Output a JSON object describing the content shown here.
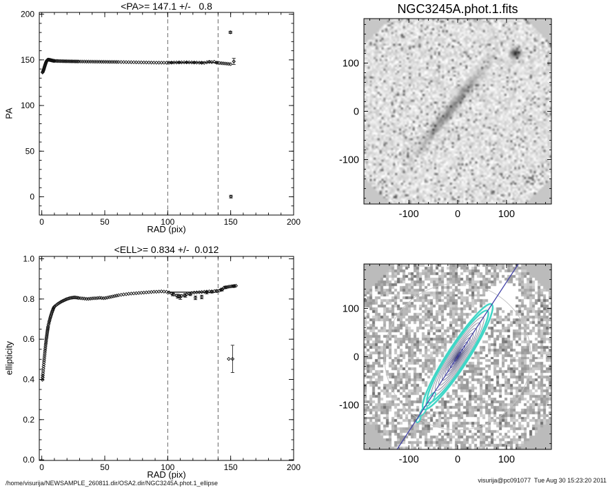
{
  "footer": {
    "left_path": "/home/visurija/NEWSAMPLE_260811.dir/OSA2.dir/NGC3245A.phot.1_ellipse",
    "right_stamp": "visurija@pc091077  Tue Aug 30 15:23:20 2011"
  },
  "chart_data": [
    {
      "id": "pa_profile",
      "type": "scatter",
      "title": "<PA>= 147.1 +/-   0.8",
      "xlabel": "RAD (pix)",
      "ylabel": "PA",
      "xlim": [
        -2,
        200
      ],
      "ylim": [
        -20,
        202
      ],
      "xticks": [
        0,
        50,
        100,
        150,
        200
      ],
      "xtick_labels": [
        "0",
        "50",
        "100",
        "150",
        "200"
      ],
      "yticks": [
        0,
        50,
        100,
        150,
        200
      ],
      "ytick_labels": [
        "0",
        "50",
        "100",
        "150",
        "200"
      ],
      "xminor": 10,
      "yminor": 10,
      "guide_vlines": [
        100,
        140
      ],
      "mean_line": {
        "y": 147.1,
        "x0": 100,
        "x1": 140
      },
      "points": [
        [
          0.6,
          136.2
        ],
        [
          0.8,
          136.8
        ],
        [
          1,
          137.5
        ],
        [
          1.2,
          138.2
        ],
        [
          1.4,
          139
        ],
        [
          1.6,
          139.8
        ],
        [
          1.8,
          140.7
        ],
        [
          2,
          141.6
        ],
        [
          2.2,
          142.5
        ],
        [
          2.4,
          143.4
        ],
        [
          2.6,
          144.3
        ],
        [
          2.8,
          145.1
        ],
        [
          3,
          145.9
        ],
        [
          3.2,
          146.7
        ],
        [
          3.4,
          147.4
        ],
        [
          3.6,
          148
        ],
        [
          3.8,
          148.6
        ],
        [
          4,
          149.1
        ],
        [
          4.2,
          149.5
        ],
        [
          4.4,
          149.8
        ],
        [
          4.6,
          150
        ],
        [
          4.8,
          150.1
        ],
        [
          5,
          150.2
        ],
        [
          5.3,
          150.2
        ],
        [
          5.6,
          150.15
        ],
        [
          5.9,
          150.1
        ],
        [
          6.2,
          150
        ],
        [
          6.5,
          149.9
        ],
        [
          6.8,
          149.8
        ],
        [
          7.1,
          149.7
        ],
        [
          7.4,
          149.6
        ],
        [
          7.7,
          149.5
        ],
        [
          8,
          149.4
        ],
        [
          8.3,
          149.3
        ],
        [
          8.6,
          149.2
        ],
        [
          8.9,
          149.1
        ],
        [
          9.2,
          149
        ],
        [
          9.5,
          148.95
        ],
        [
          9.8,
          148.9
        ],
        [
          10.5,
          148.85
        ],
        [
          11.5,
          148.8
        ],
        [
          12.5,
          148.75
        ],
        [
          13.5,
          148.7
        ],
        [
          14.5,
          148.65
        ],
        [
          15.5,
          148.6
        ],
        [
          16.5,
          148.58
        ],
        [
          17.5,
          148.55
        ],
        [
          18.5,
          148.5
        ],
        [
          19.5,
          148.48
        ],
        [
          20.5,
          148.45
        ],
        [
          21.5,
          148.42
        ],
        [
          22.5,
          148.4
        ],
        [
          23.5,
          148.38
        ],
        [
          24.5,
          148.35
        ],
        [
          25.5,
          148.32
        ],
        [
          26.5,
          148.3
        ],
        [
          27.5,
          148.28
        ],
        [
          28.5,
          148.25
        ],
        [
          29.5,
          148.22
        ],
        [
          31,
          148.2
        ],
        [
          32.5,
          148.18
        ],
        [
          34,
          148.15
        ],
        [
          35.5,
          148.12
        ],
        [
          37,
          148.1
        ],
        [
          38.5,
          148.08
        ],
        [
          40,
          148.05
        ],
        [
          41.5,
          148.02
        ],
        [
          43,
          148
        ],
        [
          44.5,
          147.98
        ],
        [
          46,
          147.95
        ],
        [
          47.5,
          147.92
        ],
        [
          49,
          147.9
        ],
        [
          50.5,
          147.88
        ],
        [
          52,
          147.85
        ],
        [
          53.5,
          147.82
        ],
        [
          55,
          147.8
        ],
        [
          56.5,
          147.78
        ],
        [
          58,
          147.75
        ],
        [
          59.5,
          147.72
        ],
        [
          61,
          147.7
        ],
        [
          63,
          147.65
        ],
        [
          65,
          147.6
        ],
        [
          67,
          147.55
        ],
        [
          69,
          147.5
        ],
        [
          71,
          147.45
        ],
        [
          73,
          147.4
        ],
        [
          75,
          147.35
        ],
        [
          77,
          147.3
        ],
        [
          79,
          147.25
        ],
        [
          81,
          147.2
        ],
        [
          83,
          147.15
        ],
        [
          85,
          147.1
        ],
        [
          87,
          147.05
        ],
        [
          89,
          147
        ],
        [
          91,
          146.95
        ],
        [
          93,
          146.98
        ],
        [
          95,
          146.95
        ],
        [
          97,
          146.9
        ],
        [
          99,
          146.88
        ],
        [
          101,
          146.9
        ],
        [
          103,
          147
        ],
        [
          105,
          147.1
        ],
        [
          107,
          147.15
        ],
        [
          109,
          147.2
        ],
        [
          111,
          147.25
        ],
        [
          113,
          147.3
        ],
        [
          115,
          147.3
        ],
        [
          117,
          147.25
        ],
        [
          119,
          147.2
        ],
        [
          121,
          147.1
        ],
        [
          123,
          147.05
        ],
        [
          125,
          146.95
        ],
        [
          127,
          146.85
        ],
        [
          129,
          146.75
        ],
        [
          131,
          147.3
        ],
        [
          133,
          147.8
        ],
        [
          135,
          147.5
        ],
        [
          137,
          147.9
        ],
        [
          139,
          146.9
        ],
        [
          141,
          146.6
        ],
        [
          142.5,
          146.4
        ],
        [
          144,
          146.2
        ],
        [
          145.5,
          146
        ],
        [
          147,
          145.8
        ],
        [
          148.5,
          145.6
        ],
        [
          150,
          145.4
        ]
      ],
      "error_points": [
        [
          103,
          147,
          1
        ],
        [
          109,
          147.2,
          0.9
        ],
        [
          115,
          147.3,
          0.8
        ],
        [
          121,
          147.1,
          0.9
        ],
        [
          127,
          146.85,
          1
        ],
        [
          133,
          147.8,
          0.9
        ],
        [
          139,
          146.9,
          1
        ],
        [
          149.8,
          180.2,
          1.2
        ],
        [
          150.2,
          0.2,
          1.5
        ],
        [
          152.5,
          148.3,
          3.4
        ]
      ]
    },
    {
      "id": "ell_profile",
      "type": "scatter",
      "title": "<ELL>= 0.834 +/-  0.012",
      "xlabel": "RAD (pix)",
      "ylabel": "ellipticity",
      "xlim": [
        -2,
        200
      ],
      "ylim": [
        -0.003,
        1.012
      ],
      "xticks": [
        0,
        50,
        100,
        150,
        200
      ],
      "xtick_labels": [
        "0",
        "50",
        "100",
        "150",
        "200"
      ],
      "yticks": [
        0,
        0.2,
        0.4,
        0.6,
        0.8,
        1
      ],
      "ytick_labels": [
        "0.0",
        "0.2",
        "0.4",
        "0.6",
        "0.8",
        "1.0"
      ],
      "xminor": 10,
      "yminor": 0.05,
      "guide_vlines": [
        100,
        140
      ],
      "mean_line": {
        "y": 0.834,
        "x0": 100,
        "x1": 140
      },
      "points": [
        [
          0.5,
          0.398
        ],
        [
          0.65,
          0.409
        ],
        [
          0.8,
          0.42
        ],
        [
          0.95,
          0.431
        ],
        [
          1.1,
          0.442
        ],
        [
          1.25,
          0.453
        ],
        [
          1.4,
          0.464
        ],
        [
          1.55,
          0.475
        ],
        [
          1.7,
          0.486
        ],
        [
          1.85,
          0.496
        ],
        [
          2,
          0.506
        ],
        [
          2.15,
          0.516
        ],
        [
          2.3,
          0.526
        ],
        [
          2.45,
          0.536
        ],
        [
          2.6,
          0.545
        ],
        [
          2.75,
          0.554
        ],
        [
          2.9,
          0.563
        ],
        [
          3.05,
          0.572
        ],
        [
          3.2,
          0.58
        ],
        [
          3.35,
          0.588
        ],
        [
          3.5,
          0.596
        ],
        [
          3.65,
          0.604
        ],
        [
          3.8,
          0.611
        ],
        [
          3.95,
          0.618
        ],
        [
          4.1,
          0.625
        ],
        [
          4.25,
          0.632
        ],
        [
          4.4,
          0.639
        ],
        [
          4.55,
          0.645
        ],
        [
          4.7,
          0.651
        ],
        [
          4.85,
          0.657
        ],
        [
          5,
          0.663
        ],
        [
          5.3,
          0.672
        ],
        [
          5.6,
          0.68
        ],
        [
          5.9,
          0.688
        ],
        [
          6.2,
          0.695
        ],
        [
          6.5,
          0.702
        ],
        [
          6.8,
          0.709
        ],
        [
          7.1,
          0.715
        ],
        [
          7.4,
          0.721
        ],
        [
          7.7,
          0.727
        ],
        [
          8,
          0.733
        ],
        [
          8.3,
          0.738
        ],
        [
          8.6,
          0.743
        ],
        [
          8.9,
          0.748
        ],
        [
          9.2,
          0.753
        ],
        [
          9.5,
          0.757
        ],
        [
          9.8,
          0.761
        ],
        [
          10.5,
          0.765
        ],
        [
          11.5,
          0.77
        ],
        [
          12.5,
          0.775
        ],
        [
          13.5,
          0.779
        ],
        [
          14.5,
          0.783
        ],
        [
          15.5,
          0.787
        ],
        [
          16.5,
          0.79
        ],
        [
          17.5,
          0.793
        ],
        [
          18.5,
          0.796
        ],
        [
          19.5,
          0.799
        ],
        [
          20.5,
          0.801
        ],
        [
          21.5,
          0.803
        ],
        [
          22.5,
          0.805
        ],
        [
          23.5,
          0.806
        ],
        [
          24.5,
          0.807
        ],
        [
          25.5,
          0.808
        ],
        [
          26.5,
          0.808
        ],
        [
          27.5,
          0.807
        ],
        [
          28.5,
          0.806
        ],
        [
          29.5,
          0.805
        ],
        [
          31,
          0.804
        ],
        [
          32.5,
          0.803
        ],
        [
          34,
          0.802
        ],
        [
          35.5,
          0.801
        ],
        [
          37,
          0.801
        ],
        [
          38.5,
          0.802
        ],
        [
          40,
          0.803
        ],
        [
          41.5,
          0.804
        ],
        [
          43,
          0.804
        ],
        [
          44.5,
          0.805
        ],
        [
          46,
          0.806
        ],
        [
          47.5,
          0.805
        ],
        [
          49,
          0.804
        ],
        [
          50.5,
          0.805
        ],
        [
          52,
          0.807
        ],
        [
          53.5,
          0.809
        ],
        [
          55,
          0.811
        ],
        [
          56.5,
          0.813
        ],
        [
          58,
          0.815
        ],
        [
          59.5,
          0.817
        ],
        [
          61,
          0.819
        ],
        [
          63,
          0.821
        ],
        [
          65,
          0.823
        ],
        [
          67,
          0.824
        ],
        [
          69,
          0.826
        ],
        [
          71,
          0.827
        ],
        [
          73,
          0.828
        ],
        [
          75,
          0.829
        ],
        [
          77,
          0.83
        ],
        [
          79,
          0.831
        ],
        [
          81,
          0.832
        ],
        [
          83,
          0.833
        ],
        [
          85,
          0.834
        ],
        [
          87,
          0.835
        ],
        [
          89,
          0.836
        ],
        [
          91,
          0.836
        ],
        [
          93,
          0.837
        ],
        [
          95,
          0.838
        ],
        [
          97,
          0.837
        ],
        [
          99,
          0.836
        ],
        [
          101,
          0.833
        ],
        [
          103,
          0.828
        ],
        [
          105,
          0.822
        ],
        [
          107,
          0.817
        ],
        [
          109,
          0.813
        ],
        [
          111,
          0.815
        ],
        [
          113,
          0.819
        ],
        [
          115,
          0.823
        ],
        [
          117,
          0.827
        ],
        [
          119,
          0.83
        ],
        [
          121,
          0.832
        ],
        [
          123,
          0.833
        ],
        [
          125,
          0.834
        ],
        [
          127,
          0.835
        ],
        [
          129,
          0.836
        ],
        [
          131,
          0.837
        ],
        [
          133,
          0.838
        ],
        [
          135,
          0.838
        ],
        [
          137,
          0.839
        ],
        [
          139,
          0.84
        ],
        [
          141,
          0.842
        ],
        [
          142.2,
          0.845
        ],
        [
          143.4,
          0.848
        ],
        [
          144.6,
          0.856
        ],
        [
          145.8,
          0.858
        ],
        [
          147,
          0.859
        ],
        [
          148.2,
          0.861
        ],
        [
          149.4,
          0.862
        ],
        [
          150.6,
          0.863
        ],
        [
          151.8,
          0.864
        ],
        [
          153,
          0.865
        ],
        [
          154.2,
          0.866
        ],
        [
          148.5,
          0.502
        ]
      ],
      "error_points": [
        [
          0.7,
          0.41,
          0.012
        ],
        [
          104,
          0.824,
          0.008
        ],
        [
          108,
          0.814,
          0.01
        ],
        [
          110,
          0.81,
          0.012
        ],
        [
          114,
          0.818,
          0.009
        ],
        [
          118,
          0.825,
          0.008
        ],
        [
          122,
          0.806,
          0.009
        ],
        [
          127,
          0.81,
          0.009
        ],
        [
          131,
          0.833,
          0.007
        ],
        [
          135,
          0.836,
          0.006
        ],
        [
          139,
          0.84,
          0.006
        ],
        [
          143,
          0.847,
          0.007
        ],
        [
          146,
          0.858,
          0.006
        ],
        [
          151.5,
          0.502,
          0.068
        ],
        [
          152.5,
          0.864,
          0.006
        ]
      ]
    },
    {
      "id": "galaxy_image",
      "type": "image",
      "title": "NGC3245A.phot.1.fits",
      "xlim": [
        -192,
        192
      ],
      "ylim": [
        -192,
        192
      ],
      "xticks": [
        -100,
        0,
        100
      ],
      "xtick_labels": [
        "-100",
        "0",
        "100"
      ],
      "yticks": [
        -100,
        0,
        100
      ],
      "ytick_labels": [
        "-100",
        "0",
        "100"
      ],
      "minor_step": 20,
      "features": {
        "galaxy_pa_deg": 147.1,
        "star_pos": [
          118,
          120
        ],
        "smudge_pos": [
          38,
          196
        ],
        "corner_gray": "#c7c7c7"
      }
    },
    {
      "id": "contour_image",
      "type": "image",
      "title": "",
      "xlim": [
        -192,
        192
      ],
      "ylim": [
        -192,
        192
      ],
      "xticks": [
        -100,
        0,
        100
      ],
      "xtick_labels": [
        "-100",
        "0",
        "100"
      ],
      "yticks": [
        -100,
        0,
        100
      ],
      "ytick_labels": [
        "-100",
        "0",
        "100"
      ],
      "minor_step": 20,
      "overlay": {
        "pa_deg": 147.1,
        "ellipticity": 0.834,
        "isophote_color": "#3fd6c6",
        "major_axis_color": "#4343a8",
        "inner_contour_dark": "#2d2d6e",
        "faint_ring_color": "#c4c4c4",
        "faint_ring_radius": 150,
        "cyan_semi_major": [
          128,
          112
        ],
        "inner_semi_major": [
          6,
          12,
          19,
          27,
          36,
          46,
          57,
          69,
          82,
          96
        ],
        "cyan_clumps": [
          [
            -55,
            -88,
            16,
            5
          ],
          [
            -70,
            -112,
            12,
            4
          ],
          [
            -80,
            -130,
            7,
            3
          ]
        ],
        "corner_gray": "#bbbbbb"
      }
    }
  ]
}
